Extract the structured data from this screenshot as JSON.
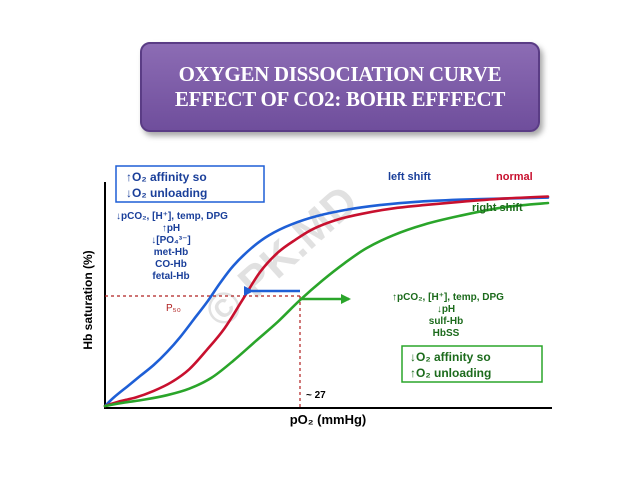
{
  "title": {
    "line1": "OXYGEN DISSOCIATION CURVE",
    "line2": "EFFECT OF CO2: BOHR EFFFECT"
  },
  "chart_data": {
    "type": "line",
    "title": "Oxygen dissociation curve - effect of CO2: Bohr effect",
    "xlabel": "pO₂ (mmHg)",
    "ylabel": "Hb saturation (%)",
    "xlim": [
      0,
      100
    ],
    "ylim": [
      0,
      100
    ],
    "grid": false,
    "p50_label": "P₅₀",
    "p50_value_label": "~ 27",
    "p50_x": 27,
    "series": [
      {
        "name": "left shift",
        "color": "#1e5fd6",
        "label_color": "#1a3f9a",
        "x": [
          0,
          2,
          5,
          8,
          11,
          14,
          17,
          20,
          23,
          26,
          29,
          33,
          37,
          42,
          48,
          55,
          62,
          70,
          80,
          90,
          100
        ],
        "y": [
          0,
          4,
          9,
          14,
          19,
          25,
          32,
          40,
          48,
          57,
          65,
          73,
          79,
          84,
          88,
          91,
          93,
          94.5,
          95.5,
          96,
          96.5
        ]
      },
      {
        "name": "normal",
        "color": "#c8102e",
        "label_color": "#c8102e",
        "x": [
          0,
          3,
          7,
          11,
          15,
          19,
          23,
          27,
          31,
          35,
          39,
          43,
          47,
          52,
          58,
          65,
          72,
          80,
          90,
          100
        ],
        "y": [
          0,
          2,
          4,
          7,
          11,
          17,
          26,
          36,
          49,
          62,
          71,
          77,
          82,
          86,
          89,
          91.5,
          93,
          94.5,
          96,
          97
        ]
      },
      {
        "name": "right shift",
        "color": "#2aa52a",
        "label_color": "#1c6b1c",
        "x": [
          0,
          4,
          9,
          14,
          19,
          24,
          29,
          34,
          39,
          44,
          49,
          54,
          59,
          65,
          72,
          80,
          90,
          100
        ],
        "y": [
          0,
          1.5,
          3,
          5,
          8,
          13,
          21,
          30,
          39,
          49,
          58,
          66,
          73,
          79,
          84,
          88,
          92,
          94
        ]
      }
    ],
    "annotations": {
      "left_box": [
        "↑O₂ affinity so",
        "↓O₂ unloading"
      ],
      "left_causes": [
        "↓pCO₂, [H⁺], temp, DPG",
        "↑pH",
        "↓[PO₄³⁻]",
        "met-Hb",
        "CO-Hb",
        "fetal-Hb"
      ],
      "right_causes": [
        "↑pCO₂, [H⁺], temp, DPG",
        "↓pH",
        "sulf-Hb",
        "HbSS"
      ],
      "right_box": [
        "↓O₂ affinity so",
        "↑O₂ unloading"
      ],
      "watermark": "© PK.MD"
    }
  }
}
